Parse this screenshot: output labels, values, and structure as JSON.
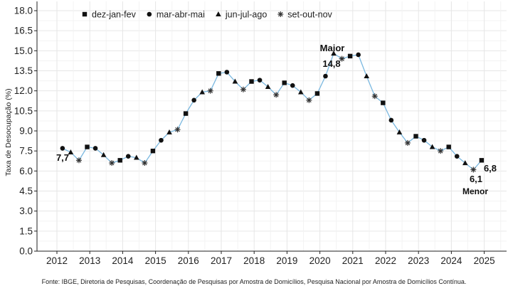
{
  "chart_data": {
    "type": "line",
    "ylabel": "Taxa de Desocupação (%)",
    "xlabel": "",
    "ylim": [
      0,
      18
    ],
    "y_ticks": [
      "0.0",
      "1.5",
      "3.0",
      "4.5",
      "6.0",
      "7.5",
      "9.0",
      "10.5",
      "12.0",
      "13.5",
      "15.0",
      "16.5",
      "18.0"
    ],
    "x_ticks": [
      "2012",
      "2013",
      "2014",
      "2015",
      "2016",
      "2017",
      "2018",
      "2019",
      "2020",
      "2021",
      "2022",
      "2023",
      "2024",
      "2025"
    ],
    "grid": true,
    "line_color": "#7ab8e0",
    "legend_position": "top-left",
    "legend": [
      {
        "label": "dez-jan-fev",
        "marker": "square"
      },
      {
        "label": "mar-abr-mai",
        "marker": "circle"
      },
      {
        "label": "jun-jul-ago",
        "marker": "triangle"
      },
      {
        "label": "set-out-nov",
        "marker": "asterisk"
      }
    ],
    "points": [
      {
        "x": 2012.17,
        "y": 7.7,
        "m": "circle"
      },
      {
        "x": 2012.42,
        "y": 7.4,
        "m": "triangle"
      },
      {
        "x": 2012.67,
        "y": 6.8,
        "m": "asterisk"
      },
      {
        "x": 2012.92,
        "y": 7.8,
        "m": "square"
      },
      {
        "x": 2013.17,
        "y": 7.7,
        "m": "circle"
      },
      {
        "x": 2013.42,
        "y": 7.2,
        "m": "triangle"
      },
      {
        "x": 2013.67,
        "y": 6.6,
        "m": "asterisk"
      },
      {
        "x": 2013.92,
        "y": 6.8,
        "m": "square"
      },
      {
        "x": 2014.17,
        "y": 7.1,
        "m": "circle"
      },
      {
        "x": 2014.42,
        "y": 7.0,
        "m": "triangle"
      },
      {
        "x": 2014.67,
        "y": 6.6,
        "m": "asterisk"
      },
      {
        "x": 2014.92,
        "y": 7.5,
        "m": "square"
      },
      {
        "x": 2015.17,
        "y": 8.3,
        "m": "circle"
      },
      {
        "x": 2015.42,
        "y": 8.9,
        "m": "triangle"
      },
      {
        "x": 2015.67,
        "y": 9.1,
        "m": "asterisk"
      },
      {
        "x": 2015.92,
        "y": 10.3,
        "m": "square"
      },
      {
        "x": 2016.17,
        "y": 11.3,
        "m": "circle"
      },
      {
        "x": 2016.42,
        "y": 11.9,
        "m": "triangle"
      },
      {
        "x": 2016.67,
        "y": 12.0,
        "m": "asterisk"
      },
      {
        "x": 2016.92,
        "y": 13.3,
        "m": "square"
      },
      {
        "x": 2017.17,
        "y": 13.4,
        "m": "circle"
      },
      {
        "x": 2017.42,
        "y": 12.7,
        "m": "triangle"
      },
      {
        "x": 2017.67,
        "y": 12.1,
        "m": "asterisk"
      },
      {
        "x": 2017.92,
        "y": 12.7,
        "m": "square"
      },
      {
        "x": 2018.17,
        "y": 12.8,
        "m": "circle"
      },
      {
        "x": 2018.42,
        "y": 12.3,
        "m": "triangle"
      },
      {
        "x": 2018.67,
        "y": 11.7,
        "m": "asterisk"
      },
      {
        "x": 2018.92,
        "y": 12.6,
        "m": "square"
      },
      {
        "x": 2019.17,
        "y": 12.4,
        "m": "circle"
      },
      {
        "x": 2019.42,
        "y": 11.9,
        "m": "triangle"
      },
      {
        "x": 2019.67,
        "y": 11.3,
        "m": "asterisk"
      },
      {
        "x": 2019.92,
        "y": 11.8,
        "m": "square"
      },
      {
        "x": 2020.17,
        "y": 13.1,
        "m": "circle"
      },
      {
        "x": 2020.42,
        "y": 14.8,
        "m": "triangle"
      },
      {
        "x": 2020.67,
        "y": 14.4,
        "m": "asterisk"
      },
      {
        "x": 2020.92,
        "y": 14.6,
        "m": "square"
      },
      {
        "x": 2021.17,
        "y": 14.7,
        "m": "circle"
      },
      {
        "x": 2021.42,
        "y": 13.1,
        "m": "triangle"
      },
      {
        "x": 2021.67,
        "y": 11.6,
        "m": "asterisk"
      },
      {
        "x": 2021.92,
        "y": 11.1,
        "m": "square"
      },
      {
        "x": 2022.17,
        "y": 9.8,
        "m": "circle"
      },
      {
        "x": 2022.42,
        "y": 8.9,
        "m": "triangle"
      },
      {
        "x": 2022.67,
        "y": 8.1,
        "m": "asterisk"
      },
      {
        "x": 2022.92,
        "y": 8.6,
        "m": "square"
      },
      {
        "x": 2023.17,
        "y": 8.3,
        "m": "circle"
      },
      {
        "x": 2023.42,
        "y": 7.8,
        "m": "triangle"
      },
      {
        "x": 2023.67,
        "y": 7.5,
        "m": "asterisk"
      },
      {
        "x": 2023.92,
        "y": 7.8,
        "m": "square"
      },
      {
        "x": 2024.17,
        "y": 7.1,
        "m": "circle"
      },
      {
        "x": 2024.42,
        "y": 6.6,
        "m": "triangle"
      },
      {
        "x": 2024.67,
        "y": 6.1,
        "m": "asterisk"
      },
      {
        "x": 2024.92,
        "y": 6.8,
        "m": "square"
      }
    ],
    "annotations": {
      "start_value": "7,7",
      "max_label": "Maior",
      "max_value": "14,8",
      "min_value": "6,1",
      "min_label": "Menor",
      "last_value": "6,8"
    }
  },
  "source_text": "Fonte: IBGE, Diretoria de Pesquisas, Coordenação de Pesquisas por Amostra de Domicílios, Pesquisa Nacional por Amostra de Domicílios Contínua."
}
